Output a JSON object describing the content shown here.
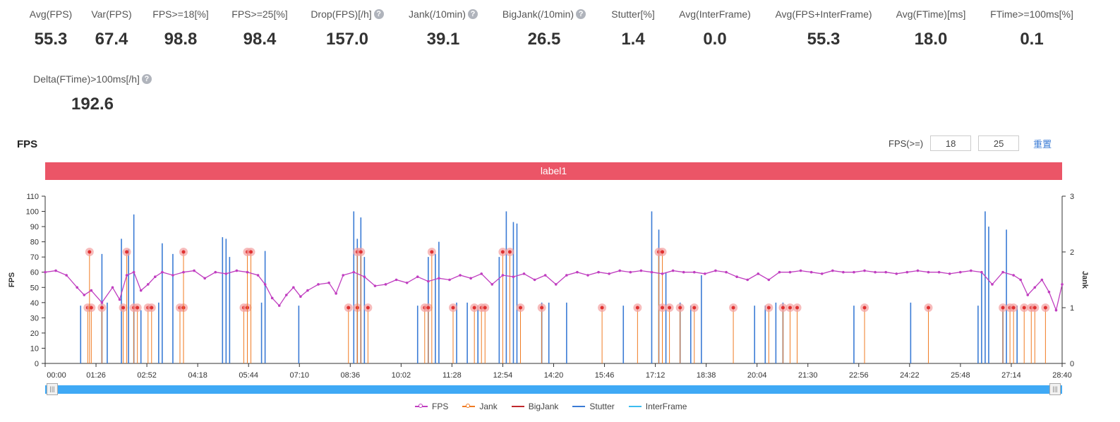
{
  "metrics": {
    "row1": [
      {
        "label": "Avg(FPS)",
        "value": "55.3",
        "help": false
      },
      {
        "label": "Var(FPS)",
        "value": "67.4",
        "help": false
      },
      {
        "label": "FPS>=18[%]",
        "value": "98.8",
        "help": false
      },
      {
        "label": "FPS>=25[%]",
        "value": "98.4",
        "help": false
      },
      {
        "label": "Drop(FPS)[/h]",
        "value": "157.0",
        "help": true
      },
      {
        "label": "Jank(/10min)",
        "value": "39.1",
        "help": true
      },
      {
        "label": "BigJank(/10min)",
        "value": "26.5",
        "help": true
      },
      {
        "label": "Stutter[%]",
        "value": "1.4",
        "help": false
      },
      {
        "label": "Avg(InterFrame)",
        "value": "0.0",
        "help": false
      },
      {
        "label": "Avg(FPS+InterFrame)",
        "value": "55.3",
        "help": false
      },
      {
        "label": "Avg(FTime)[ms]",
        "value": "18.0",
        "help": false
      },
      {
        "label": "FTime>=100ms[%]",
        "value": "0.1",
        "help": false
      }
    ],
    "row2": [
      {
        "label": "Delta(FTime)>100ms[/h]",
        "value": "192.6",
        "help": true
      }
    ],
    "help_glyph": "?"
  },
  "chart_title": "FPS",
  "filter": {
    "label": "FPS(>=)",
    "value1": "18",
    "value2": "25",
    "reset": "重置"
  },
  "label_bar": "label1",
  "colors": {
    "fps": "#c03ec0",
    "jank": "#f07b23",
    "bigjank": "#c0282d",
    "stutter": "#3a7bd5",
    "interframe": "#3cbcf0",
    "labelbar": "#eb5567",
    "jankMarker": "#e03030"
  },
  "chart_data": {
    "type": "line",
    "title": "",
    "xlabel": "",
    "ylabel": "FPS",
    "y2label": "Jank",
    "ylim": [
      0,
      110
    ],
    "y2lim": [
      0,
      3
    ],
    "yticks": [
      0,
      10,
      20,
      30,
      40,
      50,
      60,
      70,
      80,
      90,
      100,
      110
    ],
    "y2ticks": [
      0,
      1,
      2,
      3
    ],
    "xlim_min": [
      0,
      28.67
    ],
    "xtick_labels": [
      "00:00",
      "01:26",
      "02:52",
      "04:18",
      "05:44",
      "07:10",
      "08:36",
      "10:02",
      "11:28",
      "12:54",
      "14:20",
      "15:46",
      "17:12",
      "18:38",
      "20:04",
      "21:30",
      "22:56",
      "24:22",
      "25:48",
      "27:14",
      "28:40"
    ],
    "legend": [
      "FPS",
      "Jank",
      "BigJank",
      "Stutter",
      "InterFrame"
    ],
    "legend_position": "bottom",
    "grid": false,
    "fps_segments": [
      {
        "t": [
          0.0,
          2.0,
          6.0
        ],
        "v": [
          60,
          61,
          60
        ]
      },
      {
        "t": [
          6.0,
          6.3
        ],
        "v": [
          58,
          52
        ]
      },
      {
        "t": [
          6.3,
          8.5
        ],
        "v": [
          60,
          60
        ]
      },
      {
        "t": [
          8.5,
          12.0
        ],
        "v": [
          57,
          58
        ]
      },
      {
        "t": [
          12.0,
          16.5
        ],
        "v": [
          58,
          58
        ]
      },
      {
        "t": [
          16.5,
          20.0
        ],
        "v": [
          60,
          60
        ]
      },
      {
        "t": [
          20.0,
          25.0
        ],
        "v": [
          60,
          60
        ]
      },
      {
        "t": [
          25.0,
          27.5
        ],
        "v": [
          60,
          59
        ]
      },
      {
        "t": [
          27.5,
          28.67
        ],
        "v": [
          50,
          50
        ]
      }
    ],
    "fps_points": [
      [
        0.0,
        60
      ],
      [
        0.3,
        61
      ],
      [
        0.6,
        58
      ],
      [
        0.9,
        50
      ],
      [
        1.1,
        45
      ],
      [
        1.3,
        48
      ],
      [
        1.6,
        40
      ],
      [
        1.9,
        50
      ],
      [
        2.1,
        42
      ],
      [
        2.3,
        58
      ],
      [
        2.5,
        60
      ],
      [
        2.7,
        48
      ],
      [
        2.9,
        52
      ],
      [
        3.1,
        57
      ],
      [
        3.3,
        60
      ],
      [
        3.6,
        58
      ],
      [
        3.9,
        60
      ],
      [
        4.2,
        61
      ],
      [
        4.5,
        56
      ],
      [
        4.8,
        60
      ],
      [
        5.1,
        59
      ],
      [
        5.4,
        61
      ],
      [
        5.7,
        60
      ],
      [
        6.0,
        58
      ],
      [
        6.2,
        52
      ],
      [
        6.4,
        43
      ],
      [
        6.6,
        38
      ],
      [
        6.8,
        45
      ],
      [
        7.0,
        50
      ],
      [
        7.2,
        44
      ],
      [
        7.4,
        48
      ],
      [
        7.7,
        52
      ],
      [
        8.0,
        53
      ],
      [
        8.2,
        46
      ],
      [
        8.4,
        58
      ],
      [
        8.7,
        60
      ],
      [
        9.0,
        57
      ],
      [
        9.3,
        51
      ],
      [
        9.6,
        52
      ],
      [
        9.9,
        55
      ],
      [
        10.2,
        53
      ],
      [
        10.5,
        57
      ],
      [
        10.8,
        54
      ],
      [
        11.1,
        56
      ],
      [
        11.4,
        55
      ],
      [
        11.7,
        58
      ],
      [
        12.0,
        56
      ],
      [
        12.3,
        59
      ],
      [
        12.6,
        52
      ],
      [
        12.9,
        58
      ],
      [
        13.2,
        57
      ],
      [
        13.5,
        59
      ],
      [
        13.8,
        55
      ],
      [
        14.1,
        58
      ],
      [
        14.4,
        52
      ],
      [
        14.7,
        58
      ],
      [
        15.0,
        60
      ],
      [
        15.3,
        58
      ],
      [
        15.6,
        60
      ],
      [
        15.9,
        59
      ],
      [
        16.2,
        61
      ],
      [
        16.5,
        60
      ],
      [
        16.8,
        61
      ],
      [
        17.1,
        60
      ],
      [
        17.4,
        59
      ],
      [
        17.7,
        61
      ],
      [
        18.0,
        60
      ],
      [
        18.3,
        60
      ],
      [
        18.6,
        59
      ],
      [
        18.9,
        61
      ],
      [
        19.2,
        60
      ],
      [
        19.5,
        57
      ],
      [
        19.8,
        55
      ],
      [
        20.1,
        59
      ],
      [
        20.4,
        55
      ],
      [
        20.7,
        60
      ],
      [
        21.0,
        60
      ],
      [
        21.3,
        61
      ],
      [
        21.6,
        60
      ],
      [
        21.9,
        59
      ],
      [
        22.2,
        61
      ],
      [
        22.5,
        60
      ],
      [
        22.8,
        60
      ],
      [
        23.1,
        61
      ],
      [
        23.4,
        60
      ],
      [
        23.7,
        60
      ],
      [
        24.0,
        59
      ],
      [
        24.3,
        60
      ],
      [
        24.6,
        61
      ],
      [
        24.9,
        60
      ],
      [
        25.2,
        60
      ],
      [
        25.5,
        59
      ],
      [
        25.8,
        60
      ],
      [
        26.1,
        61
      ],
      [
        26.4,
        60
      ],
      [
        26.7,
        52
      ],
      [
        27.0,
        60
      ],
      [
        27.3,
        58
      ],
      [
        27.5,
        55
      ],
      [
        27.7,
        45
      ],
      [
        27.9,
        50
      ],
      [
        28.1,
        55
      ],
      [
        28.3,
        47
      ],
      [
        28.5,
        35
      ],
      [
        28.67,
        52
      ]
    ],
    "stutter_spikes": [
      [
        1.0,
        38
      ],
      [
        1.6,
        72
      ],
      [
        1.75,
        40
      ],
      [
        2.15,
        82
      ],
      [
        2.35,
        75
      ],
      [
        2.5,
        98
      ],
      [
        2.7,
        35
      ],
      [
        3.2,
        40
      ],
      [
        3.3,
        79
      ],
      [
        3.6,
        72
      ],
      [
        5.0,
        83
      ],
      [
        5.1,
        82
      ],
      [
        5.2,
        70
      ],
      [
        6.1,
        40
      ],
      [
        6.2,
        74
      ],
      [
        7.15,
        38
      ],
      [
        8.7,
        100
      ],
      [
        8.8,
        82
      ],
      [
        8.9,
        96
      ],
      [
        9.0,
        70
      ],
      [
        10.5,
        38
      ],
      [
        10.8,
        70
      ],
      [
        11.0,
        72
      ],
      [
        11.1,
        80
      ],
      [
        11.6,
        40
      ],
      [
        11.9,
        40
      ],
      [
        12.2,
        38
      ],
      [
        12.8,
        70
      ],
      [
        13.0,
        100
      ],
      [
        13.2,
        93
      ],
      [
        13.3,
        92
      ],
      [
        14.0,
        40
      ],
      [
        14.2,
        40
      ],
      [
        14.7,
        40
      ],
      [
        16.3,
        38
      ],
      [
        17.1,
        100
      ],
      [
        17.3,
        88
      ],
      [
        17.5,
        60
      ],
      [
        17.9,
        40
      ],
      [
        18.2,
        38
      ],
      [
        18.5,
        58
      ],
      [
        20.0,
        38
      ],
      [
        20.3,
        38
      ],
      [
        20.6,
        40
      ],
      [
        20.8,
        40
      ],
      [
        22.8,
        38
      ],
      [
        24.4,
        40
      ],
      [
        26.3,
        38
      ],
      [
        26.4,
        60
      ],
      [
        26.5,
        100
      ],
      [
        26.6,
        90
      ],
      [
        27.0,
        38
      ],
      [
        27.1,
        88
      ],
      [
        27.4,
        38
      ]
    ],
    "jank_markers": [
      [
        1.2,
        1
      ],
      [
        1.3,
        1
      ],
      [
        1.25,
        2
      ],
      [
        1.6,
        1
      ],
      [
        2.2,
        1
      ],
      [
        2.3,
        2
      ],
      [
        2.5,
        1
      ],
      [
        2.6,
        1
      ],
      [
        2.9,
        1
      ],
      [
        3.0,
        1
      ],
      [
        3.8,
        1
      ],
      [
        3.9,
        1
      ],
      [
        3.9,
        2
      ],
      [
        5.6,
        1
      ],
      [
        5.7,
        1
      ],
      [
        5.7,
        2
      ],
      [
        5.8,
        2
      ],
      [
        8.55,
        1
      ],
      [
        8.8,
        1
      ],
      [
        8.8,
        2
      ],
      [
        8.9,
        2
      ],
      [
        9.1,
        1
      ],
      [
        10.7,
        1
      ],
      [
        10.8,
        1
      ],
      [
        10.9,
        2
      ],
      [
        11.5,
        1
      ],
      [
        12.1,
        1
      ],
      [
        12.3,
        1
      ],
      [
        12.4,
        1
      ],
      [
        12.9,
        2
      ],
      [
        13.1,
        2
      ],
      [
        13.4,
        1
      ],
      [
        14.0,
        1
      ],
      [
        15.7,
        1
      ],
      [
        16.7,
        1
      ],
      [
        17.3,
        2
      ],
      [
        17.4,
        2
      ],
      [
        17.4,
        1
      ],
      [
        17.6,
        1
      ],
      [
        17.9,
        1
      ],
      [
        18.3,
        1
      ],
      [
        19.4,
        1
      ],
      [
        20.4,
        1
      ],
      [
        20.8,
        1
      ],
      [
        21.0,
        1
      ],
      [
        21.2,
        1
      ],
      [
        23.1,
        1
      ],
      [
        24.9,
        1
      ],
      [
        27.0,
        1
      ],
      [
        27.2,
        1
      ],
      [
        27.3,
        1
      ],
      [
        27.6,
        1
      ],
      [
        27.8,
        1
      ],
      [
        27.9,
        1
      ],
      [
        28.2,
        1
      ]
    ]
  }
}
